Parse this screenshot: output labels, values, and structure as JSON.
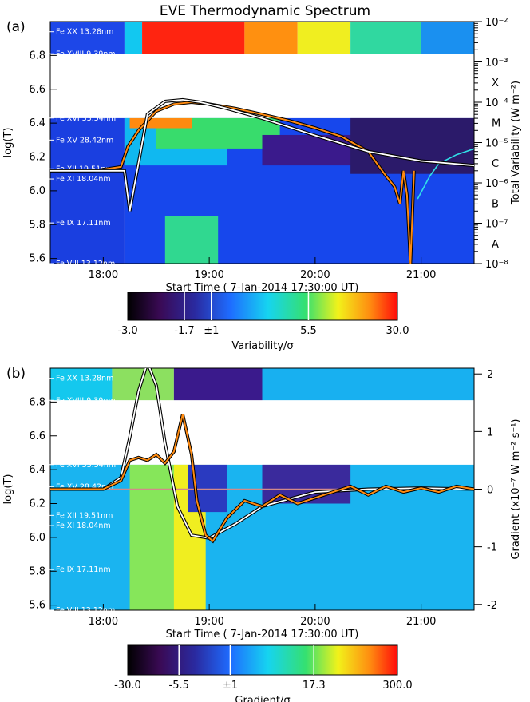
{
  "title": "EVE Thermodynamic Spectrum",
  "chart_data": [
    {
      "type": "heatmap",
      "panel_label": "(a)",
      "xlabel": "Start Time ( 7-Jan-2014 17:30:00 UT)",
      "xlim": [
        "17:30",
        "21:30"
      ],
      "xticks": [
        "18:00",
        "19:00",
        "20:00",
        "21:00"
      ],
      "ylabel": "log(T)",
      "ylim": [
        5.57,
        7.0
      ],
      "yticks": [
        "5.6",
        "5.8",
        "6.0",
        "6.2",
        "6.4",
        "6.6",
        "6.8"
      ],
      "right_ylabel": "Total Variability (W m⁻²)",
      "right_scale": "log",
      "right_ylim": [
        1e-08,
        0.01
      ],
      "right_ytick_labels": [
        "10⁻⁸",
        "10⁻⁷",
        "10⁻⁶",
        "10⁻⁵",
        "10⁻⁴",
        "10⁻³",
        "10⁻²"
      ],
      "goes_classes": [
        "A",
        "B",
        "C",
        "M",
        "X"
      ],
      "lines": [
        {
          "name": "Fe XX 13.28nm",
          "logT": 6.94
        },
        {
          "name": "Fe XVIII 9.39nm",
          "logT": 6.81
        },
        {
          "name": "Fe XVI 33.54nm",
          "logT": 6.43
        },
        {
          "name": "Fe XV 28.42nm",
          "logT": 6.3
        },
        {
          "name": "Fe XII 19.51nm",
          "logT": 6.13
        },
        {
          "name": "Fe XI 18.04nm",
          "logT": 6.07
        },
        {
          "name": "Fe IX 17.11nm",
          "logT": 5.81
        },
        {
          "name": "Fe VIII 13.12nm",
          "logT": 5.57
        }
      ],
      "colorbar": {
        "label": "Variability/σ",
        "ticks": [
          "-3.0",
          "-1.7",
          "±1",
          "5.5",
          "30.0"
        ]
      },
      "series": [
        {
          "style": "orange-black",
          "x": [
            "17:30",
            "17:55",
            "18:10",
            "18:14",
            "18:20",
            "18:30",
            "18:40",
            "18:50",
            "19:00",
            "19:15",
            "19:30",
            "19:45",
            "20:00",
            "20:15",
            "20:30",
            "20:40",
            "20:45",
            "20:48",
            "20:50",
            "20:52",
            "20:54",
            "20:56"
          ],
          "y": [
            2e-06,
            2e-06,
            2.5e-06,
            8e-06,
            2e-05,
            6e-05,
            9e-05,
            0.0001,
            9e-05,
            7e-05,
            5e-05,
            3.5e-05,
            2.3e-05,
            1.4e-05,
            6e-06,
            1.5e-06,
            8e-07,
            3e-07,
            2e-06,
            5e-07,
            1e-08,
            2e-06
          ]
        },
        {
          "style": "cyan",
          "x": [
            "20:58",
            "21:05",
            "21:10",
            "21:20",
            "21:30"
          ],
          "y": [
            4e-07,
            1.5e-06,
            3e-06,
            5e-06,
            7e-06
          ]
        },
        {
          "style": "white-black",
          "x": [
            "17:30",
            "18:12",
            "18:15",
            "18:25",
            "18:35",
            "18:45",
            "18:55",
            "19:10",
            "19:30",
            "20:00",
            "20:30",
            "21:00",
            "21:30"
          ],
          "y": [
            2e-06,
            2e-06,
            2e-07,
            5e-05,
            0.000105,
            0.000115,
            0.0001,
            7e-05,
            4e-05,
            1.5e-05,
            6e-06,
            3.5e-06,
            2.7e-06
          ]
        }
      ]
    },
    {
      "type": "heatmap",
      "panel_label": "(b)",
      "xlabel": "Start Time ( 7-Jan-2014 17:30:00 UT)",
      "xlim": [
        "17:30",
        "21:30"
      ],
      "xticks": [
        "18:00",
        "19:00",
        "20:00",
        "21:00"
      ],
      "ylabel": "log(T)",
      "ylim": [
        5.57,
        7.0
      ],
      "yticks": [
        "5.6",
        "5.8",
        "6.0",
        "6.2",
        "6.4",
        "6.6",
        "6.8"
      ],
      "right_ylabel": "Gradient (x10⁻⁷ W m⁻² s⁻¹)",
      "right_ylim": [
        -2.1,
        2.1
      ],
      "right_ytick_labels": [
        "-2",
        "-1",
        "0",
        "1",
        "2"
      ],
      "lines": [
        {
          "name": "Fe XX 13.28nm",
          "logT": 6.94
        },
        {
          "name": "Fe XVIII 9.39nm",
          "logT": 6.81
        },
        {
          "name": "Fe XVI 33.54nm",
          "logT": 6.43
        },
        {
          "name": "Fe XV 28.42nm",
          "logT": 6.3
        },
        {
          "name": "Fe XII 19.51nm",
          "logT": 6.13
        },
        {
          "name": "Fe XI 18.04nm",
          "logT": 6.07
        },
        {
          "name": "Fe IX 17.11nm",
          "logT": 5.81
        },
        {
          "name": "Fe VIII 13.12nm",
          "logT": 5.57
        }
      ],
      "colorbar": {
        "label": "Gradient/σ",
        "ticks": [
          "-30.0",
          "-5.5",
          "±1",
          "17.3",
          "300.0"
        ]
      },
      "series": [
        {
          "style": "white-black",
          "x": [
            "17:30",
            "18:00",
            "18:10",
            "18:15",
            "18:20",
            "18:25",
            "18:30",
            "18:35",
            "18:42",
            "18:50",
            "19:00",
            "19:15",
            "19:30",
            "20:00",
            "20:30",
            "21:00",
            "21:30"
          ],
          "y": [
            0,
            0,
            0.2,
            0.9,
            1.7,
            2.2,
            1.8,
            0.8,
            -0.3,
            -0.8,
            -0.85,
            -0.6,
            -0.3,
            -0.05,
            0.0,
            0.02,
            0.0
          ]
        },
        {
          "style": "orange-black",
          "x": [
            "17:30",
            "18:00",
            "18:10",
            "18:15",
            "18:20",
            "18:25",
            "18:30",
            "18:35",
            "18:40",
            "18:45",
            "18:50",
            "18:53",
            "18:58",
            "19:02",
            "19:10",
            "19:20",
            "19:30",
            "19:40",
            "19:50",
            "20:00",
            "20:10",
            "20:20",
            "20:30",
            "20:40",
            "20:50",
            "21:00",
            "21:10",
            "21:20",
            "21:30"
          ],
          "y": [
            0.0,
            0.0,
            0.15,
            0.5,
            0.55,
            0.5,
            0.6,
            0.45,
            0.65,
            1.3,
            0.6,
            -0.2,
            -0.8,
            -0.9,
            -0.5,
            -0.2,
            -0.3,
            -0.1,
            -0.25,
            -0.15,
            -0.05,
            0.05,
            -0.1,
            0.05,
            -0.05,
            0.02,
            -0.05,
            0.05,
            0.0
          ]
        }
      ]
    }
  ]
}
